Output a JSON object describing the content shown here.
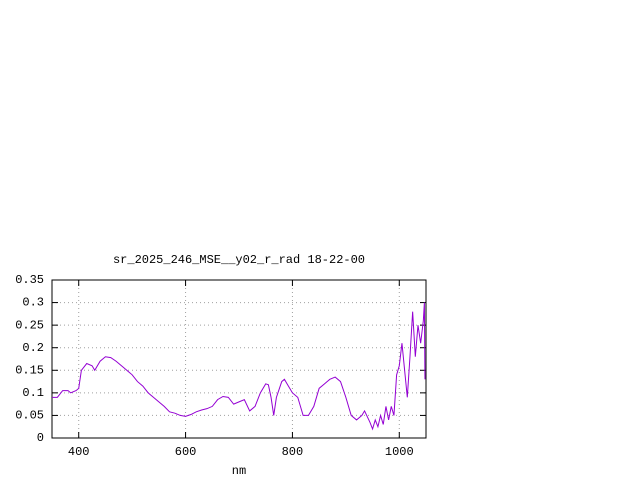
{
  "chart_data": {
    "type": "line",
    "title": "sr_2025_246_MSE__y02_r_rad 18-22-00",
    "x_label": "nm",
    "x": [
      350,
      360,
      370,
      380,
      385,
      395,
      400,
      405,
      415,
      425,
      430,
      440,
      450,
      460,
      470,
      480,
      490,
      500,
      510,
      520,
      530,
      540,
      550,
      560,
      570,
      580,
      590,
      600,
      610,
      620,
      630,
      640,
      650,
      660,
      670,
      680,
      690,
      700,
      710,
      720,
      730,
      740,
      750,
      755,
      760,
      765,
      770,
      780,
      785,
      790,
      800,
      810,
      815,
      820,
      830,
      840,
      850,
      860,
      870,
      880,
      890,
      900,
      910,
      920,
      930,
      935,
      945,
      950,
      955,
      960,
      965,
      970,
      975,
      980,
      985,
      990,
      995,
      1000,
      1005,
      1010,
      1015,
      1020,
      1025,
      1030,
      1035,
      1040,
      1045,
      1047,
      1048
    ],
    "series": [
      {
        "name": "sr_2025_246_MSE__y02_r_rad",
        "color": "#9400d3",
        "values": [
          0.09,
          0.09,
          0.105,
          0.105,
          0.1,
          0.105,
          0.11,
          0.15,
          0.165,
          0.16,
          0.15,
          0.17,
          0.18,
          0.178,
          0.17,
          0.16,
          0.15,
          0.14,
          0.125,
          0.115,
          0.1,
          0.09,
          0.08,
          0.07,
          0.058,
          0.055,
          0.05,
          0.048,
          0.052,
          0.058,
          0.062,
          0.065,
          0.07,
          0.085,
          0.092,
          0.09,
          0.075,
          0.08,
          0.085,
          0.06,
          0.07,
          0.1,
          0.12,
          0.118,
          0.09,
          0.05,
          0.09,
          0.125,
          0.13,
          0.12,
          0.1,
          0.09,
          0.07,
          0.05,
          0.05,
          0.07,
          0.11,
          0.12,
          0.13,
          0.135,
          0.125,
          0.09,
          0.05,
          0.04,
          0.05,
          0.06,
          0.035,
          0.02,
          0.04,
          0.025,
          0.05,
          0.03,
          0.07,
          0.04,
          0.07,
          0.05,
          0.14,
          0.16,
          0.21,
          0.15,
          0.09,
          0.18,
          0.28,
          0.18,
          0.25,
          0.21,
          0.26,
          0.3,
          0.13
        ]
      }
    ],
    "xlim": [
      350,
      1050
    ],
    "ylim": [
      0,
      0.35
    ],
    "xticks": [
      400,
      600,
      800,
      1000
    ],
    "yticks": [
      0,
      0.05,
      0.1,
      0.15,
      0.2,
      0.25,
      0.3,
      0.35
    ],
    "grid": true
  }
}
